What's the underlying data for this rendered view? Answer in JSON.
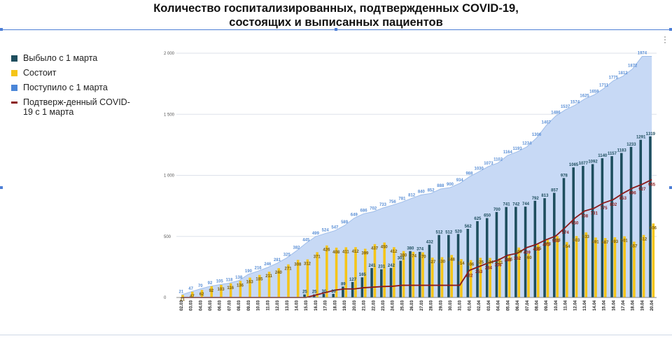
{
  "title": {
    "line1": "Количество госпитализированных, подтвержденных COVID-19,",
    "line2": "состоящих и выписанных пациентов"
  },
  "legend": [
    {
      "label": "Выбыло с 1 марта",
      "color": "#1e4e5e",
      "kind": "box"
    },
    {
      "label": "Состоит",
      "color": "#f5c518",
      "kind": "box"
    },
    {
      "label": "Поступило с 1 марта",
      "color": "#4a86d8",
      "kind": "box"
    },
    {
      "label": "Подтверж-денный COVID-19 с 1 марта",
      "color": "#8b1a1a",
      "kind": "line"
    }
  ],
  "chart_data": {
    "type": "bar",
    "ylim": [
      0,
      2000
    ],
    "yticks": [
      "0",
      "500",
      "1 000",
      "1 500",
      "2 000"
    ],
    "grid": true,
    "legend_position": "left",
    "x": [
      "02.03",
      "03.03",
      "04.03",
      "05.03",
      "06.03",
      "07.03",
      "08.03",
      "09.03",
      "10.03",
      "11.03",
      "12.03",
      "13.03",
      "14.03",
      "15.03",
      "16.03",
      "17.03",
      "18.03",
      "19.03",
      "20.03",
      "21.03",
      "22.03",
      "23.03",
      "24.03",
      "25.03",
      "26.03",
      "27.03",
      "28.03",
      "29.03",
      "30.03",
      "31.03",
      "01.04",
      "02.04",
      "03.04",
      "04.04",
      "05.04",
      "06.04",
      "07.04",
      "08.04",
      "09.04",
      "10.04",
      "11.04",
      "12.04",
      "13.04",
      "14.04",
      "15.04",
      "16.04",
      "17.04",
      "18.04",
      "19.04",
      "20.04"
    ],
    "series": [
      {
        "name": "Поступило с 1 марта",
        "type": "area",
        "color": "#c7d9f5",
        "values": [
          21,
          47,
          70,
          92,
          105,
          118,
          138,
          190,
          216,
          246,
          281,
          325,
          382,
          445,
          499,
          524,
          547,
          589,
          649,
          686,
          702,
          733,
          756,
          781,
          812,
          840,
          852,
          888,
          900,
          934,
          988,
          1030,
          1073,
          1102,
          1164,
          1193,
          1234,
          1306,
          1407,
          1486,
          1537,
          1574,
          1625,
          1659,
          1711,
          1775,
          1812,
          1872,
          1974,
          1974
        ]
      },
      {
        "name": "Выбыло с 1 марта",
        "type": "bar",
        "color": "#1e4e5e",
        "values": [
          0,
          0,
          0,
          0,
          0,
          0,
          0,
          0,
          0,
          0,
          0,
          0,
          0,
          25,
          25,
          30,
          30,
          89,
          127,
          165,
          241,
          231,
          242,
          301,
          380,
          374,
          432,
          512,
          512,
          520,
          562,
          625,
          650,
          700,
          741,
          742,
          744,
          792,
          813,
          857,
          978,
          1065,
          1077,
          1092,
          1140,
          1157,
          1183,
          1233,
          1291,
          1319
        ]
      },
      {
        "name": "Состоит",
        "type": "bar",
        "color": "#f5c518",
        "values": [
          21,
          47,
          62,
          92,
          103,
          116,
          136,
          163,
          185,
          211,
          240,
          271,
          308,
          312,
          371,
          426,
          408,
          411,
          412,
          399,
          437,
          450,
          412,
          380,
          374,
          370,
          327,
          330,
          348,
          314,
          306,
          325,
          324,
          321,
          346,
          409,
          360,
          435,
          473,
          503,
          454,
          503,
          533,
          491,
          487,
          493,
          501,
          457,
          512,
          606
        ]
      },
      {
        "name": "Подтверж-денный COVID-19 с 1 марта",
        "type": "line",
        "color": "#8b1a1a",
        "values": [
          0,
          0,
          0,
          0,
          0,
          0,
          0,
          0,
          0,
          0,
          0,
          0,
          0,
          0,
          20,
          40,
          60,
          70,
          70,
          80,
          85,
          90,
          92,
          100,
          100,
          100,
          100,
          100,
          100,
          100,
          222,
          253,
          284,
          306,
          346,
          362,
          409,
          435,
          473,
          503,
          574,
          650,
          708,
          731,
          775,
          802,
          853,
          896,
          927,
          965
        ]
      }
    ],
    "data_labels": {
      "admitted": [
        "21",
        "47",
        "70",
        "92",
        "105",
        "118",
        "138",
        "190",
        "216",
        "246",
        "281",
        "325",
        "382",
        "445",
        "499",
        "524",
        "547",
        "589",
        "649",
        "686",
        "702",
        "733",
        "756",
        "781",
        "812",
        "840",
        "852",
        "888",
        "900",
        "934",
        "988",
        "1030",
        "1073",
        "1102",
        "1164",
        "1193",
        "1234",
        "1306",
        "1407",
        "1486",
        "1537",
        "1574",
        "1625",
        "1659",
        "1711",
        "1775",
        "1812",
        "1872",
        "1974",
        "1974"
      ],
      "discharged": [
        "",
        "",
        "",
        "",
        "",
        "",
        "",
        "",
        "",
        "",
        "",
        "",
        "",
        "25",
        "25",
        "30",
        "30",
        "89",
        "127",
        "165",
        "241",
        "231",
        "242",
        "301",
        "380",
        "374",
        "432",
        "512",
        "512",
        "520",
        "562",
        "625",
        "650",
        "700",
        "741",
        "742",
        "744",
        "792",
        "813",
        "857",
        "978",
        "1065",
        "1077",
        "1092",
        "1140",
        "1157",
        "1183",
        "1233",
        "1291",
        "1319"
      ],
      "current": [
        "21",
        "47",
        "62",
        "92",
        "103",
        "116",
        "136",
        "163",
        "185",
        "211",
        "240",
        "271",
        "308",
        "312",
        "371",
        "426",
        "408",
        "411",
        "412",
        "399",
        "437",
        "450",
        "412",
        "380",
        "374",
        "370",
        "327",
        "330",
        "348",
        "314",
        "306",
        "325",
        "324",
        "321",
        "346",
        "409",
        "360",
        "435",
        "473",
        "503",
        "454",
        "503",
        "533",
        "491",
        "487",
        "493",
        "501",
        "457",
        "512",
        "606"
      ],
      "confirmed": [
        "",
        "",
        "",
        "",
        "",
        "",
        "",
        "",
        "",
        "",
        "",
        "",
        "",
        "",
        "",
        "",
        "",
        "",
        "",
        "",
        "",
        "",
        "",
        "",
        "",
        "",
        "",
        "",
        "",
        "",
        "222",
        "253",
        "284",
        "306",
        "346",
        "362",
        "409",
        "435",
        "473",
        "503",
        "574",
        "650",
        "708",
        "731",
        "775",
        "802",
        "853",
        "896",
        "927",
        "965"
      ]
    }
  }
}
